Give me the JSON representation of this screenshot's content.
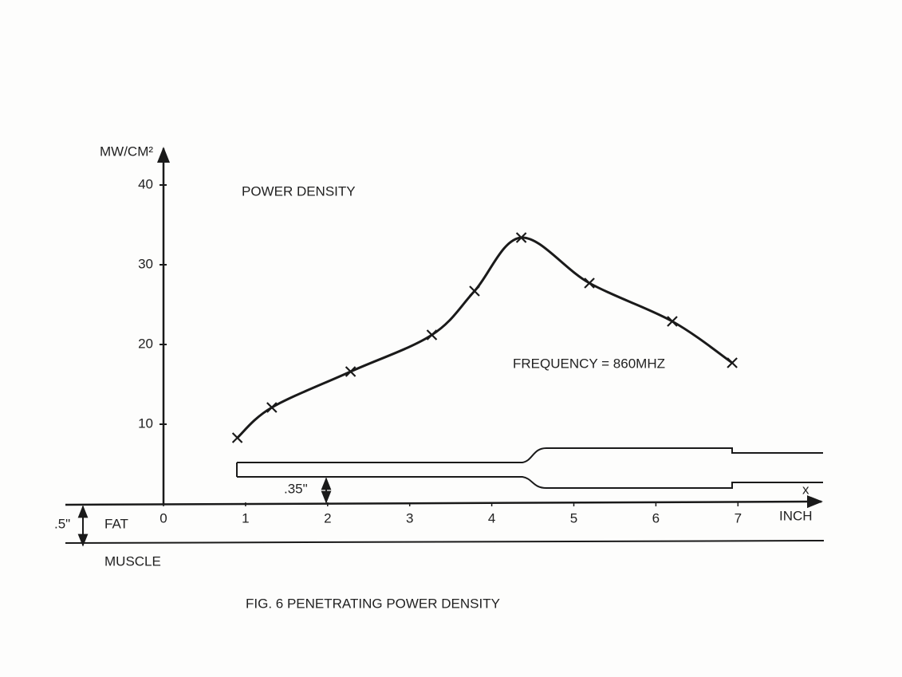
{
  "chart_data": {
    "type": "line",
    "title": "POWER DENSITY",
    "y_label": "MW/CM²",
    "x_label": "INCH",
    "annotation": "FREQUENCY = 860MHZ",
    "caption": "FIG. 6 PENETRATING POWER DENSITY",
    "diagram_labels": {
      "x": "x",
      "gap": ".35\"",
      "fat_thickness": ".5\"",
      "fat": "FAT",
      "muscle": "MUSCLE"
    },
    "x": [
      0.9,
      1.32,
      2.28,
      3.27,
      3.79,
      4.36,
      5.19,
      6.2,
      6.93
    ],
    "values": [
      8.3,
      12.1,
      16.6,
      21.2,
      26.7,
      33.4,
      27.7,
      22.9,
      17.7
    ],
    "color": "#1a1a1a",
    "xlim": [
      0,
      8
    ],
    "ylim": [
      0,
      45
    ],
    "xticks": [
      0,
      1,
      2,
      3,
      4,
      5,
      6,
      7
    ],
    "yticks": [
      10,
      20,
      30,
      40
    ],
    "grid": false
  }
}
